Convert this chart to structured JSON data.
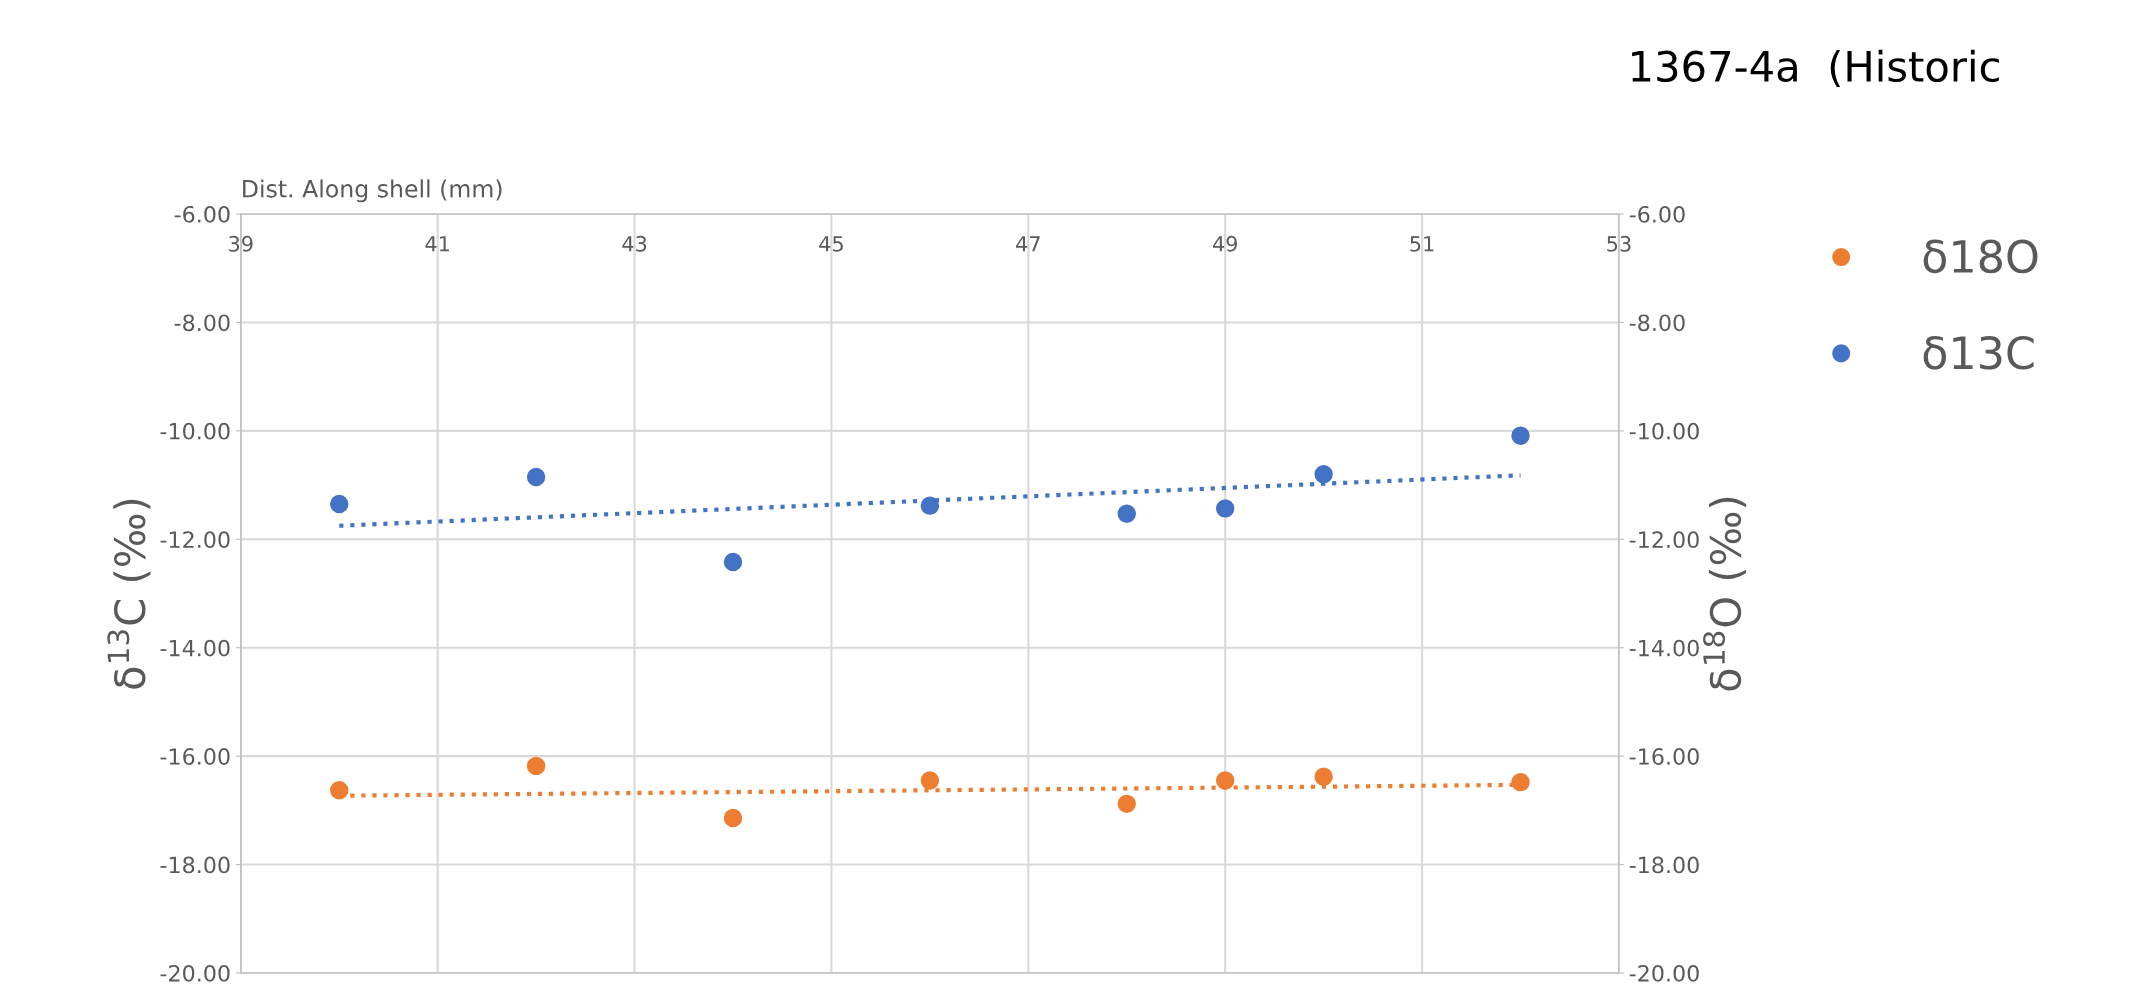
{
  "chart_data": {
    "type": "scatter",
    "title": "1367-4a  (Historic",
    "xlabel": "Dist. Along shell (mm)",
    "ylabel": "δ$^{13}$C (‰)",
    "y2label": "δ$^{18}$O (‰)",
    "xlim": [
      39,
      53
    ],
    "xticks": [
      39,
      41,
      43,
      45,
      47,
      49,
      51,
      53
    ],
    "ylim": [
      -20,
      -6
    ],
    "yticks": [
      {
        "value": -6,
        "label": "-6.00"
      },
      {
        "value": -8,
        "label": "-8.00"
      },
      {
        "value": -10,
        "label": "-10.00"
      },
      {
        "value": -12,
        "label": "-12.00"
      },
      {
        "value": -14,
        "label": "-14.00"
      },
      {
        "value": -16,
        "label": "-16.00"
      },
      {
        "value": -18,
        "label": "-18.00"
      },
      {
        "value": -20,
        "label": "-20.00"
      }
    ],
    "y2lim": [
      -20,
      -6
    ],
    "y2ticks": [
      {
        "value": -6,
        "label": "-6.00"
      },
      {
        "value": -8,
        "label": "-8.00"
      },
      {
        "value": -10,
        "label": "-10.00"
      },
      {
        "value": -12,
        "label": "-12.00"
      },
      {
        "value": -14,
        "label": "-14.00"
      },
      {
        "value": -16,
        "label": "-16.00"
      },
      {
        "value": -18,
        "label": "-18.00"
      },
      {
        "value": -20,
        "label": "-20.00"
      }
    ],
    "grid": true,
    "legend": "right",
    "marker": "circle",
    "series": [
      {
        "name": "δ18O",
        "color": "#ed7d31",
        "x": [
          40,
          42,
          44,
          46,
          48,
          49,
          50,
          52
        ],
        "values": [
          -16.63,
          -16.18,
          -17.14,
          -16.45,
          -16.88,
          -16.45,
          -16.38,
          -16.48
        ]
      },
      {
        "name": "δ13C",
        "color": "#4472c4",
        "x": [
          40,
          42,
          44,
          46,
          48,
          49,
          50,
          52
        ],
        "values": [
          -11.35,
          -10.85,
          -12.42,
          -11.38,
          -11.53,
          -11.43,
          -10.8,
          -10.09
        ]
      },
      {
        "type": "line",
        "color": "#ed7d31",
        "marker": "none",
        "line_style": "dotted",
        "x": [
          40,
          52
        ],
        "values": [
          -16.73,
          -16.53
        ]
      },
      {
        "type": "line",
        "color": "#4472c4",
        "marker": "none",
        "line_style": "dotted",
        "x": [
          40,
          52
        ],
        "values": [
          -11.75,
          -10.82
        ]
      }
    ]
  }
}
